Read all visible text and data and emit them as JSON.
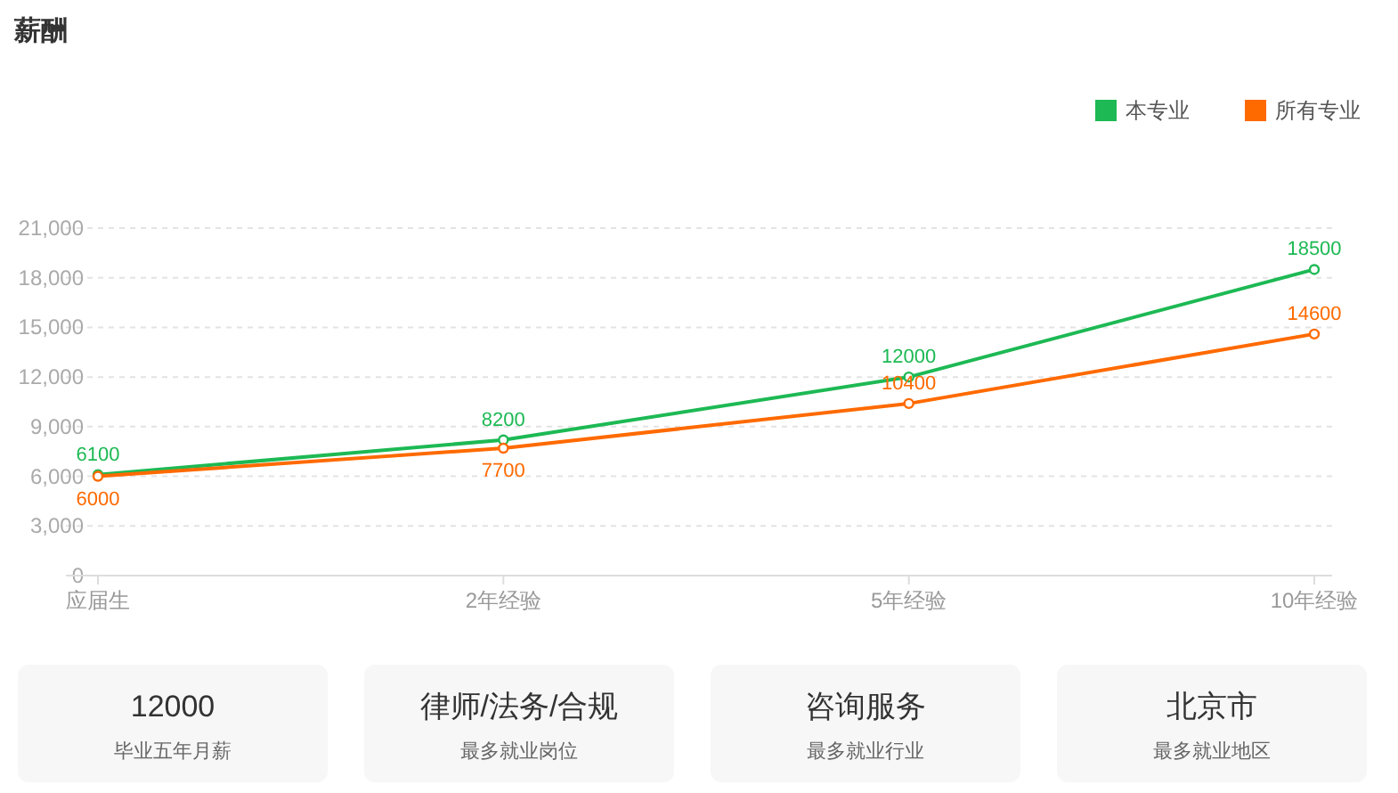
{
  "chart_data": [
    {
      "type": "line",
      "title": "薪酬",
      "categories": [
        "应届生",
        "2年经验",
        "5年经验",
        "10年经验"
      ],
      "series": [
        {
          "name": "本专业",
          "color": "#1db954",
          "values": [
            6100,
            8200,
            12000,
            18500
          ]
        },
        {
          "name": "所有专业",
          "color": "#ff6a00",
          "values": [
            6000,
            7700,
            10400,
            14600
          ]
        }
      ],
      "ylim": [
        0,
        21000
      ],
      "yticks": [
        0,
        {
          "value": 3000,
          "label": "3,000"
        },
        {
          "value": 6000,
          "label": "6,000"
        },
        {
          "value": 9000,
          "label": "9,000"
        },
        {
          "value": 12000,
          "label": "12,000"
        },
        {
          "value": 15000,
          "label": "15,000"
        },
        {
          "value": 18000,
          "label": "18,000"
        },
        {
          "value": 21000,
          "label": "21,000"
        }
      ],
      "grid": "y",
      "legend": "top right",
      "marker": "circle",
      "line_style": "solid",
      "data_labels": true
    },
    {
      "type": "other",
      "title": "12000",
      "subtitle": "毕业五年月薪"
    },
    {
      "type": "other",
      "title": "律师/法务/合规",
      "subtitle": "最多就业岗位"
    },
    {
      "type": "other",
      "title": "咨询服务",
      "subtitle": "最多就业行业"
    },
    {
      "type": "other",
      "title": "北京市",
      "subtitle": "最多就业地区"
    }
  ]
}
